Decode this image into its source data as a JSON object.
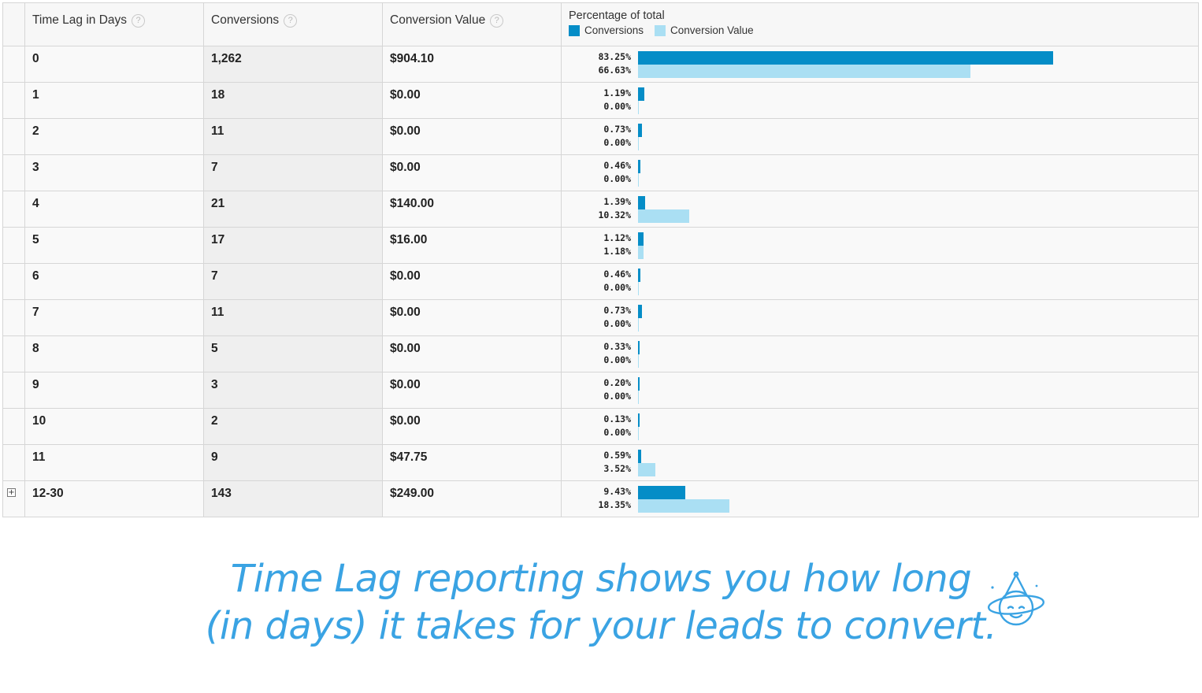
{
  "table": {
    "headers": {
      "time_lag": "Time Lag in Days",
      "conversions": "Conversions",
      "conversion_value": "Conversion Value",
      "percentage": "Percentage of total",
      "help_glyph": "?"
    },
    "legend": [
      {
        "label": "Conversions",
        "color": "#058dc7"
      },
      {
        "label": "Conversion Value",
        "color": "#aadff3"
      }
    ],
    "expand_glyph": "+",
    "rows": [
      {
        "day": "0",
        "conversions": "1,262",
        "value": "$904.10",
        "pct_conv": "83.25%",
        "pct_value": "66.63%",
        "conv_share": 83.25,
        "value_share": 66.63
      },
      {
        "day": "1",
        "conversions": "18",
        "value": "$0.00",
        "pct_conv": "1.19%",
        "pct_value": "0.00%",
        "conv_share": 1.19,
        "value_share": 0.0
      },
      {
        "day": "2",
        "conversions": "11",
        "value": "$0.00",
        "pct_conv": "0.73%",
        "pct_value": "0.00%",
        "conv_share": 0.73,
        "value_share": 0.0
      },
      {
        "day": "3",
        "conversions": "7",
        "value": "$0.00",
        "pct_conv": "0.46%",
        "pct_value": "0.00%",
        "conv_share": 0.46,
        "value_share": 0.0
      },
      {
        "day": "4",
        "conversions": "21",
        "value": "$140.00",
        "pct_conv": "1.39%",
        "pct_value": "10.32%",
        "conv_share": 1.39,
        "value_share": 10.32
      },
      {
        "day": "5",
        "conversions": "17",
        "value": "$16.00",
        "pct_conv": "1.12%",
        "pct_value": "1.18%",
        "conv_share": 1.12,
        "value_share": 1.18
      },
      {
        "day": "6",
        "conversions": "7",
        "value": "$0.00",
        "pct_conv": "0.46%",
        "pct_value": "0.00%",
        "conv_share": 0.46,
        "value_share": 0.0
      },
      {
        "day": "7",
        "conversions": "11",
        "value": "$0.00",
        "pct_conv": "0.73%",
        "pct_value": "0.00%",
        "conv_share": 0.73,
        "value_share": 0.0
      },
      {
        "day": "8",
        "conversions": "5",
        "value": "$0.00",
        "pct_conv": "0.33%",
        "pct_value": "0.00%",
        "conv_share": 0.33,
        "value_share": 0.0
      },
      {
        "day": "9",
        "conversions": "3",
        "value": "$0.00",
        "pct_conv": "0.20%",
        "pct_value": "0.00%",
        "conv_share": 0.2,
        "value_share": 0.0
      },
      {
        "day": "10",
        "conversions": "2",
        "value": "$0.00",
        "pct_conv": "0.13%",
        "pct_value": "0.00%",
        "conv_share": 0.13,
        "value_share": 0.0
      },
      {
        "day": "11",
        "conversions": "9",
        "value": "$47.75",
        "pct_conv": "0.59%",
        "pct_value": "3.52%",
        "conv_share": 0.59,
        "value_share": 3.52
      },
      {
        "day": "12-30",
        "conversions": "143",
        "value": "$249.00",
        "pct_conv": "9.43%",
        "pct_value": "18.35%",
        "conv_share": 9.43,
        "value_share": 18.35,
        "expandable": true
      }
    ]
  },
  "caption": {
    "line1": "Time Lag reporting shows you how long",
    "line2": "(in days) it takes for your leads to convert.",
    "color": "#3aa3e3"
  },
  "logo": {
    "icon": "mascot-face-icon"
  }
}
